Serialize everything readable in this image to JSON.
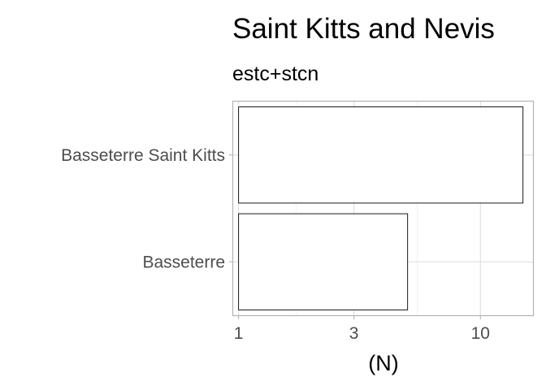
{
  "chart_data": {
    "type": "bar",
    "orientation": "horizontal",
    "title": "Saint Kitts and Nevis",
    "subtitle": "estc+stcn",
    "xlabel": "(N)",
    "ylabel": "",
    "x_scale": "log10",
    "xlim": [
      0.95,
      16.5
    ],
    "x_ticks": [
      1,
      3,
      10
    ],
    "x_tick_labels": [
      "1",
      "3",
      "10"
    ],
    "categories": [
      "Basseterre Saint Kitts",
      "Basseterre"
    ],
    "values": [
      15,
      5
    ],
    "bar_fill": "#ffffff",
    "bar_outline": "#000000",
    "grid": true,
    "legend": "none"
  }
}
